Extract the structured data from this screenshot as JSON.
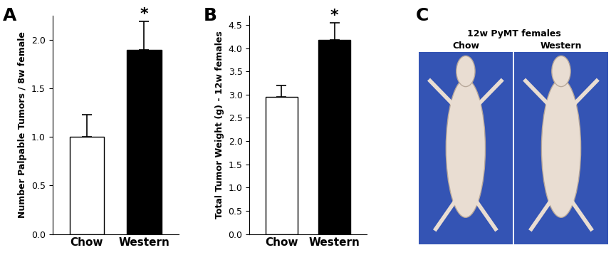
{
  "chart_data": [
    {
      "type": "bar",
      "title": "A",
      "y_label": "Number Palpable Tumors / 8w female",
      "categories": [
        "Chow",
        "Western"
      ],
      "values": [
        1.0,
        1.9
      ],
      "errors": [
        0.23,
        0.29
      ],
      "colors": [
        "#ffffff",
        "#000000"
      ],
      "ylim": [
        0,
        2.25
      ],
      "yticks": [
        {
          "value": 0,
          "label": "0.0"
        },
        {
          "value": 0.5,
          "label": "0.5"
        },
        {
          "value": 1.0,
          "label": "1.0"
        },
        {
          "value": 1.5,
          "label": "1.5"
        },
        {
          "value": 2.0,
          "label": "2.0"
        }
      ],
      "grid": false,
      "annotations": [
        {
          "category": "Western",
          "text": "*"
        }
      ]
    },
    {
      "type": "bar",
      "title": "B",
      "y_label": "Total Tumor Weight (g) - 12w females",
      "categories": [
        "Chow",
        "Western"
      ],
      "values": [
        2.95,
        4.17
      ],
      "errors": [
        0.25,
        0.38
      ],
      "colors": [
        "#ffffff",
        "#000000"
      ],
      "ylim": [
        0,
        4.7
      ],
      "yticks": [
        {
          "value": 0,
          "label": "0.0"
        },
        {
          "value": 0.5,
          "label": "0.5"
        },
        {
          "value": 1.0,
          "label": "1.0"
        },
        {
          "value": 1.5,
          "label": "1.5"
        },
        {
          "value": 2.0,
          "label": "2.0"
        },
        {
          "value": 2.5,
          "label": "2.5"
        },
        {
          "value": 3.0,
          "label": "3.0"
        },
        {
          "value": 3.5,
          "label": "3.5"
        },
        {
          "value": 4.0,
          "label": "4.0"
        },
        {
          "value": 4.5,
          "label": "4.5"
        }
      ],
      "grid": false,
      "annotations": [
        {
          "category": "Western",
          "text": "*"
        }
      ]
    }
  ],
  "panel_c": {
    "label": "C",
    "title": "12w PyMT females",
    "captions": [
      "Chow",
      "Western"
    ],
    "color": "#3454b4"
  }
}
